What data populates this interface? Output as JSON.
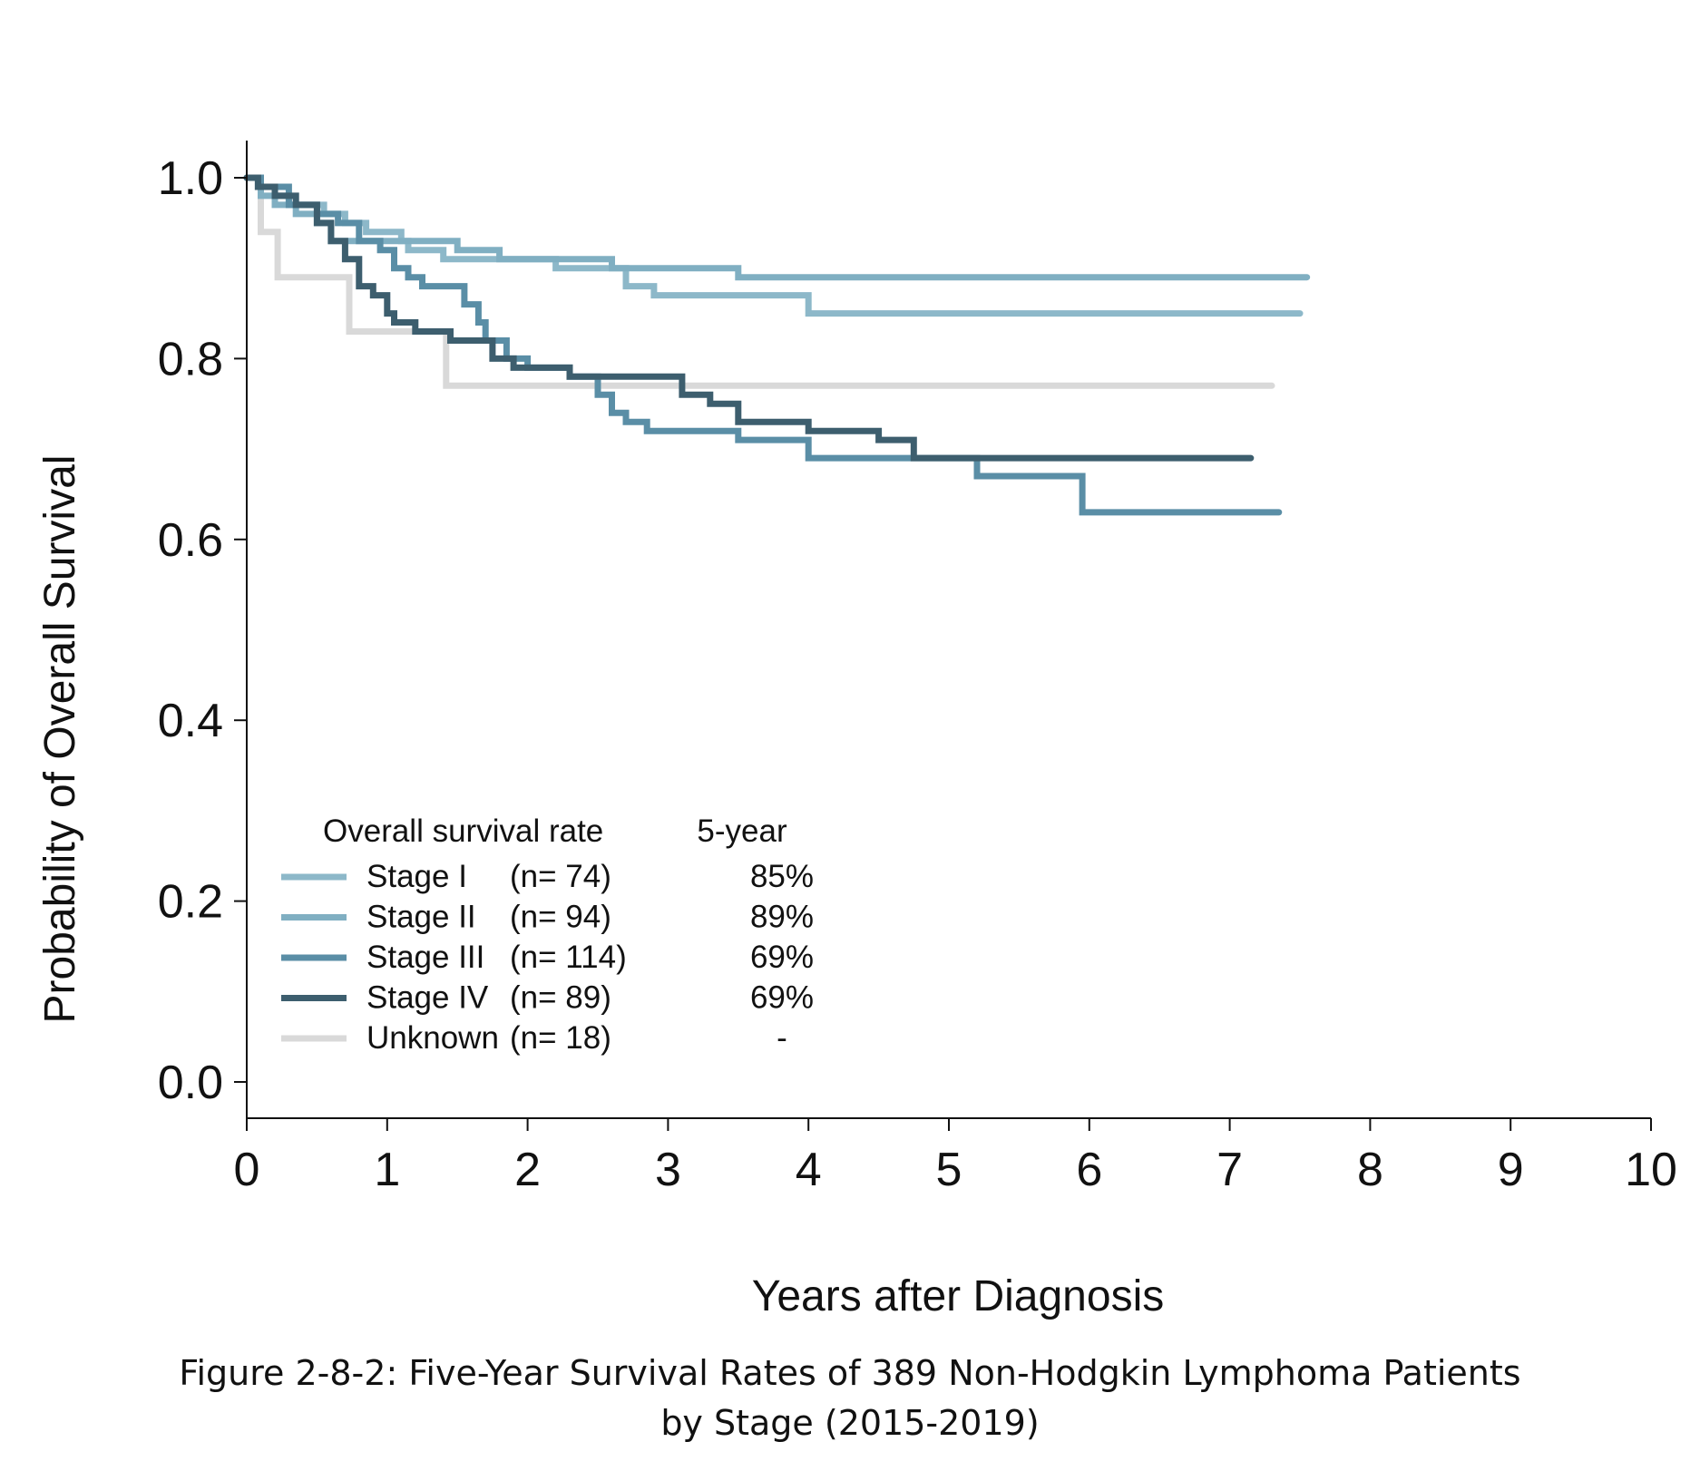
{
  "chart_data": {
    "type": "line",
    "step": true,
    "xlabel": "Years after Diagnosis",
    "ylabel": "Probability of Overall Survival",
    "xlim": [
      0,
      10
    ],
    "ylim": [
      0,
      1
    ],
    "x_ticks": [
      "0",
      "1",
      "2",
      "3",
      "4",
      "5",
      "6",
      "7",
      "8",
      "9",
      "10"
    ],
    "y_ticks": [
      "0.0",
      "0.2",
      "0.4",
      "0.6",
      "0.8",
      "1.0"
    ],
    "legend": {
      "placement": "bottom-left",
      "header": "Overall survival rate",
      "rate_header": "5-year"
    },
    "series": [
      {
        "name": "Stage I",
        "n": "(n= 74)",
        "rate": "85%",
        "color": "#8db8c9",
        "x": [
          0,
          0.08,
          0.2,
          0.3,
          0.55,
          0.7,
          0.85,
          1.1,
          1.15,
          1.4,
          1.6,
          2.2,
          2.7,
          2.9,
          3.5,
          4.0,
          7.5
        ],
        "y": [
          1.0,
          0.99,
          0.98,
          0.97,
          0.96,
          0.95,
          0.94,
          0.93,
          0.92,
          0.91,
          0.91,
          0.9,
          0.88,
          0.87,
          0.87,
          0.85,
          0.85
        ]
      },
      {
        "name": "Stage II",
        "n": "(n= 94)",
        "rate": "89%",
        "color": "#80afc2",
        "x": [
          0,
          0.1,
          0.2,
          0.35,
          0.5,
          0.6,
          1.0,
          1.5,
          1.8,
          2.3,
          2.6,
          2.9,
          3.5,
          7.55
        ],
        "y": [
          1.0,
          0.98,
          0.97,
          0.96,
          0.95,
          0.93,
          0.93,
          0.92,
          0.91,
          0.91,
          0.9,
          0.9,
          0.89,
          0.89
        ]
      },
      {
        "name": "Stage III",
        "n": "(n= 114)",
        "rate": "69%",
        "color": "#5a8ea6",
        "x": [
          0,
          0.1,
          0.3,
          0.5,
          0.65,
          0.8,
          0.95,
          1.05,
          1.15,
          1.25,
          1.55,
          1.65,
          1.7,
          1.85,
          2.0,
          2.3,
          2.5,
          2.6,
          2.7,
          2.85,
          3.0,
          3.5,
          4.0,
          4.5,
          5.2,
          5.95,
          7.35
        ],
        "y": [
          1.0,
          0.99,
          0.97,
          0.96,
          0.95,
          0.93,
          0.92,
          0.9,
          0.89,
          0.88,
          0.86,
          0.84,
          0.82,
          0.8,
          0.79,
          0.78,
          0.76,
          0.74,
          0.73,
          0.72,
          0.72,
          0.71,
          0.69,
          0.69,
          0.67,
          0.63,
          0.63
        ]
      },
      {
        "name": "Stage IV",
        "n": "(n= 89)",
        "rate": "69%",
        "color": "#3d5e6e",
        "x": [
          0,
          0.08,
          0.2,
          0.35,
          0.5,
          0.6,
          0.7,
          0.8,
          0.9,
          1.0,
          1.05,
          1.2,
          1.45,
          1.75,
          1.9,
          2.3,
          2.7,
          3.1,
          3.3,
          3.5,
          4.0,
          4.5,
          4.75,
          7.15
        ],
        "y": [
          1.0,
          0.99,
          0.98,
          0.97,
          0.95,
          0.93,
          0.91,
          0.88,
          0.87,
          0.85,
          0.84,
          0.83,
          0.82,
          0.8,
          0.79,
          0.78,
          0.78,
          0.76,
          0.75,
          0.73,
          0.72,
          0.71,
          0.69,
          0.69
        ]
      },
      {
        "name": "Unknown",
        "n": "(n= 18)",
        "rate": "-",
        "color": "#d9d9d9",
        "x": [
          0,
          0.1,
          0.22,
          0.73,
          1.42,
          7.3
        ],
        "y": [
          1.0,
          0.94,
          0.89,
          0.83,
          0.77,
          0.77
        ]
      }
    ]
  },
  "caption": {
    "line1": "Figure 2-8-2: Five-Year Survival Rates of 389 Non-Hodgkin Lymphoma Patients",
    "line2": "by Stage (2015-2019)"
  }
}
